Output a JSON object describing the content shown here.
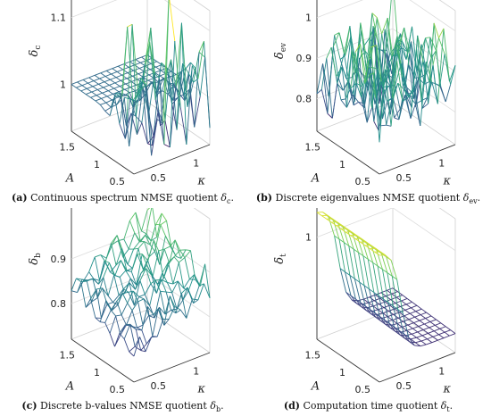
{
  "chart_data": [
    {
      "panel": "a",
      "type": "surface",
      "caption": {
        "tag": "(a)",
        "text": "Continuous spectrum NMSE quotient ",
        "symbol": "δ",
        "sub": "c",
        "end": "."
      },
      "zlabel": {
        "symbol": "δ",
        "sub": "c"
      },
      "xlabel": "κ",
      "ylabel": "A",
      "x_ticks": [
        "0.5",
        "1"
      ],
      "y_ticks": [
        "0.5",
        "1",
        "1.5"
      ],
      "z_ticks": [
        {
          "value": 1.0,
          "label": "1"
        },
        {
          "value": 1.1,
          "label": "1.1"
        }
      ],
      "x_range": [
        0.25,
        1.25
      ],
      "y_range": [
        0.5,
        1.75
      ],
      "zlim": [
        0.93,
        1.13
      ],
      "grid": true,
      "colormap": "viridis",
      "surface_model": "flat plane at δc = 1 for large A; spiky peaks up to ~1.12 and dips to ~0.95 for small A",
      "grid_size": [
        14,
        14
      ]
    },
    {
      "panel": "b",
      "type": "surface",
      "caption": {
        "tag": "(b)",
        "text": "Discrete eigenvalues NMSE quotient ",
        "symbol": "δ",
        "sub": "ev",
        "end": "."
      },
      "zlabel": {
        "symbol": "δ",
        "sub": "ev"
      },
      "xlabel": "κ",
      "ylabel": "A",
      "x_ticks": [
        "0.5",
        "1"
      ],
      "y_ticks": [
        "0.5",
        "1",
        "1.5"
      ],
      "z_ticks": [
        {
          "value": 0.8,
          "label": "0.8"
        },
        {
          "value": 0.9,
          "label": "0.9"
        },
        {
          "value": 1.0,
          "label": "1"
        }
      ],
      "x_range": [
        0.25,
        1.25
      ],
      "y_range": [
        0.5,
        1.75
      ],
      "zlim": [
        0.72,
        1.05
      ],
      "grid": true,
      "colormap": "viridis",
      "surface_model": "noisy surface between ~0.75 and ~1.0",
      "grid_size": [
        14,
        14
      ]
    },
    {
      "panel": "c",
      "type": "surface",
      "caption": {
        "tag": "(c)",
        "text": "Discrete b-values NMSE quotient ",
        "symbol": "δ",
        "sub": "b",
        "end": "."
      },
      "zlabel": {
        "symbol": "δ",
        "sub": "b"
      },
      "xlabel": "κ",
      "ylabel": "A",
      "x_ticks": [
        "0.5",
        "1"
      ],
      "y_ticks": [
        "0.5",
        "1",
        "1.5"
      ],
      "z_ticks": [
        {
          "value": 0.8,
          "label": "0.8"
        },
        {
          "value": 0.9,
          "label": "0.9"
        }
      ],
      "x_range": [
        0.25,
        1.25
      ],
      "y_range": [
        0.5,
        1.75
      ],
      "zlim": [
        0.72,
        1.02
      ],
      "grid": true,
      "colormap": "viridis",
      "surface_model": "noisy surface rising from ~0.78 to ~1.0 toward large kappa and large A",
      "grid_size": [
        14,
        14
      ]
    },
    {
      "panel": "d",
      "type": "surface",
      "caption": {
        "tag": "(d)",
        "text": "Computation time quotient ",
        "symbol": "δ",
        "sub": "t",
        "end": "."
      },
      "zlabel": {
        "symbol": "δ",
        "sub": "t"
      },
      "xlabel": "κ",
      "ylabel": "A",
      "x_ticks": [
        "0.5",
        "1"
      ],
      "y_ticks": [
        "0.5",
        "1",
        "1.5"
      ],
      "z_ticks": [
        {
          "value": 1.0,
          "label": "1"
        }
      ],
      "x_range": [
        0.25,
        1.25
      ],
      "y_range": [
        0.5,
        1.75
      ],
      "zlim": [
        0.2,
        1.25
      ],
      "grid": true,
      "colormap": "viridis",
      "surface_model": "smooth surface, ~1.2 at small kappa dropping steeply to ~0.35 for kappa > 0.6",
      "grid_size": [
        14,
        14
      ]
    }
  ]
}
